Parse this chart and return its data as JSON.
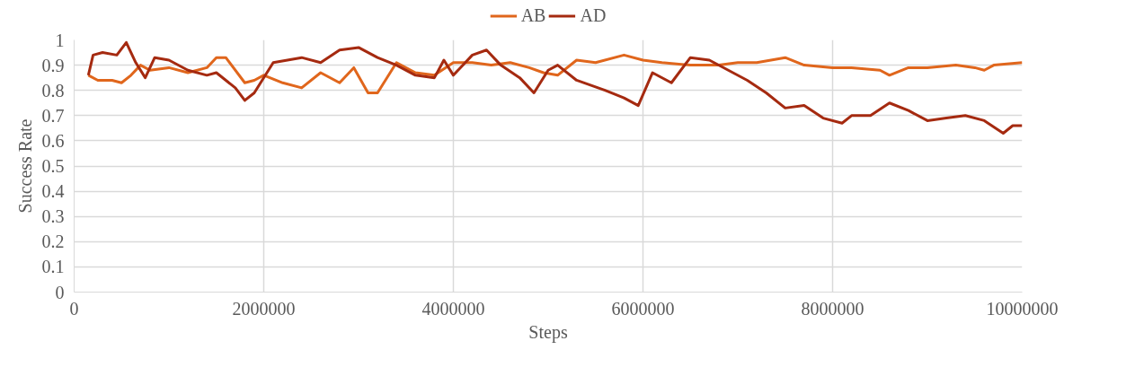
{
  "chart_data": {
    "type": "line",
    "xlabel": "Steps",
    "ylabel": "Success Rate",
    "xlim": [
      0,
      10000000
    ],
    "xticks": [
      0,
      2000000,
      4000000,
      6000000,
      8000000,
      10000000
    ],
    "ylim": [
      0,
      1
    ],
    "yticks": [
      0,
      0.1,
      0.2,
      0.3,
      0.4,
      0.5,
      0.6,
      0.7,
      0.8,
      0.9,
      1
    ],
    "grid": true,
    "legend": "top",
    "marker": "none",
    "line_style": "solid",
    "series": [
      {
        "name": "AB",
        "color": "#e0661c",
        "x": [
          150000,
          250000,
          400000,
          500000,
          600000,
          700000,
          800000,
          1000000,
          1200000,
          1400000,
          1500000,
          1600000,
          1800000,
          1900000,
          2000000,
          2200000,
          2400000,
          2600000,
          2800000,
          2950000,
          3100000,
          3200000,
          3400000,
          3600000,
          3800000,
          4000000,
          4200000,
          4400000,
          4600000,
          4800000,
          4950000,
          5100000,
          5300000,
          5500000,
          5800000,
          6000000,
          6200000,
          6500000,
          6800000,
          7000000,
          7200000,
          7500000,
          7700000,
          8000000,
          8200000,
          8500000,
          8600000,
          8800000,
          9000000,
          9300000,
          9500000,
          9600000,
          9700000,
          10000000
        ],
        "values": [
          0.86,
          0.84,
          0.84,
          0.83,
          0.86,
          0.9,
          0.88,
          0.89,
          0.87,
          0.89,
          0.93,
          0.93,
          0.83,
          0.84,
          0.86,
          0.83,
          0.81,
          0.87,
          0.83,
          0.89,
          0.79,
          0.79,
          0.91,
          0.87,
          0.86,
          0.91,
          0.91,
          0.9,
          0.91,
          0.89,
          0.87,
          0.86,
          0.92,
          0.91,
          0.94,
          0.92,
          0.91,
          0.9,
          0.9,
          0.91,
          0.91,
          0.93,
          0.9,
          0.89,
          0.89,
          0.88,
          0.86,
          0.89,
          0.89,
          0.9,
          0.89,
          0.88,
          0.9,
          0.91
        ]
      },
      {
        "name": "AD",
        "color": "#a52a10",
        "x": [
          150000,
          200000,
          300000,
          450000,
          550000,
          650000,
          750000,
          850000,
          1000000,
          1200000,
          1400000,
          1500000,
          1700000,
          1800000,
          1900000,
          2100000,
          2400000,
          2600000,
          2800000,
          3000000,
          3200000,
          3400000,
          3600000,
          3800000,
          3900000,
          4000000,
          4200000,
          4350000,
          4500000,
          4700000,
          4850000,
          5000000,
          5100000,
          5300000,
          5600000,
          5800000,
          5950000,
          6100000,
          6300000,
          6500000,
          6700000,
          6900000,
          7100000,
          7300000,
          7500000,
          7700000,
          7900000,
          8100000,
          8200000,
          8400000,
          8600000,
          8800000,
          9000000,
          9200000,
          9400000,
          9600000,
          9800000,
          9900000,
          10000000
        ],
        "values": [
          0.86,
          0.94,
          0.95,
          0.94,
          0.99,
          0.91,
          0.85,
          0.93,
          0.92,
          0.88,
          0.86,
          0.87,
          0.81,
          0.76,
          0.79,
          0.91,
          0.93,
          0.91,
          0.96,
          0.97,
          0.93,
          0.9,
          0.86,
          0.85,
          0.92,
          0.86,
          0.94,
          0.96,
          0.9,
          0.85,
          0.79,
          0.88,
          0.9,
          0.84,
          0.8,
          0.77,
          0.74,
          0.87,
          0.83,
          0.93,
          0.92,
          0.88,
          0.84,
          0.79,
          0.73,
          0.74,
          0.69,
          0.67,
          0.7,
          0.7,
          0.75,
          0.72,
          0.68,
          0.69,
          0.7,
          0.68,
          0.63,
          0.66,
          0.66
        ]
      }
    ]
  }
}
